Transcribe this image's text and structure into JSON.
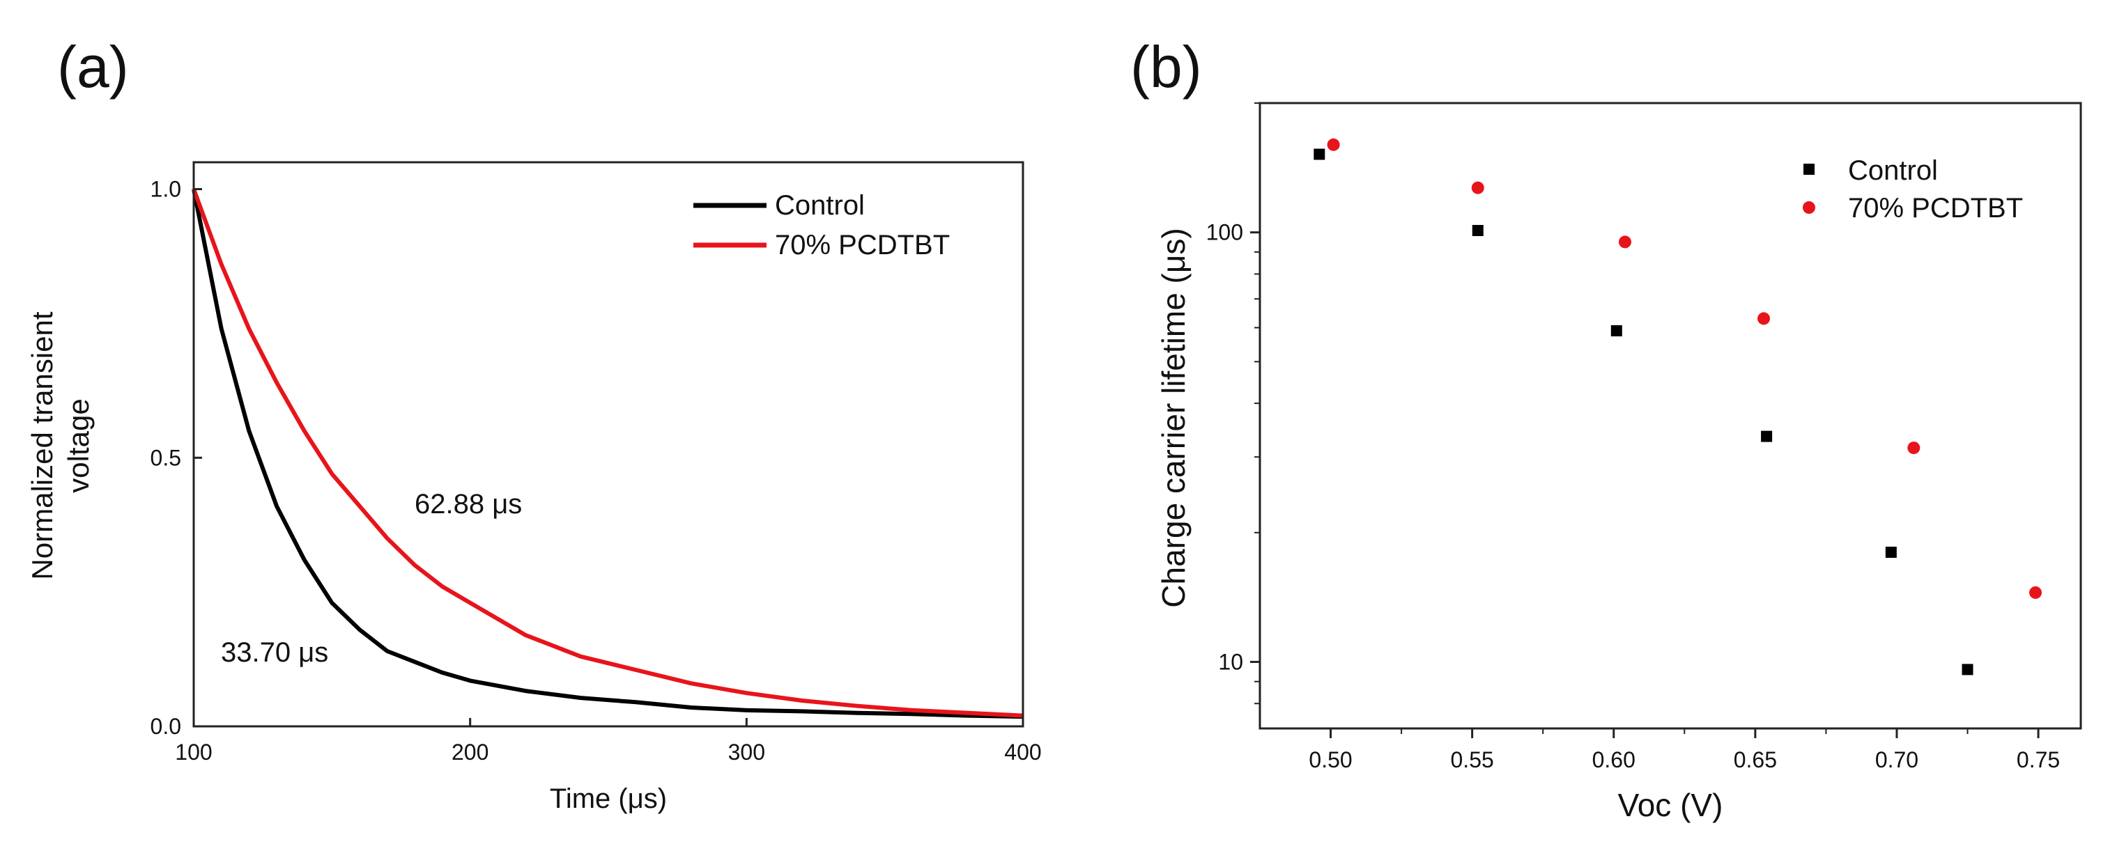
{
  "chart_data": [
    {
      "panel": "(a)",
      "type": "line",
      "title": "",
      "xlabel": "Time (μs)",
      "ylabel": "Normalized transient voltage",
      "ylabel_lines": [
        "Normalized transient",
        "voltage"
      ],
      "xlim": [
        100,
        400
      ],
      "ylim": [
        0,
        1.05
      ],
      "x_ticks": [
        100,
        200,
        300,
        400
      ],
      "x_tick_labels": [
        "100",
        "200",
        "300",
        "400"
      ],
      "y_ticks": [
        0,
        0.5,
        1.0
      ],
      "y_tick_labels": [
        "0.0",
        "0.5",
        "1.0"
      ],
      "legend_position": "top-right",
      "series": [
        {
          "name": "Control",
          "color": "#000000",
          "x": [
            100,
            110,
            120,
            130,
            140,
            150,
            160,
            170,
            180,
            190,
            200,
            220,
            240,
            260,
            280,
            300,
            320,
            340,
            360,
            380,
            400
          ],
          "values": [
            1.0,
            0.74,
            0.55,
            0.41,
            0.31,
            0.23,
            0.18,
            0.14,
            0.12,
            0.1,
            0.085,
            0.066,
            0.053,
            0.045,
            0.035,
            0.03,
            0.028,
            0.025,
            0.023,
            0.02,
            0.018
          ]
        },
        {
          "name": "70% PCDTBT",
          "color": "#e8141b",
          "x": [
            100,
            110,
            120,
            130,
            140,
            150,
            160,
            170,
            180,
            190,
            200,
            220,
            240,
            260,
            280,
            300,
            320,
            340,
            360,
            380,
            400
          ],
          "values": [
            1.0,
            0.86,
            0.74,
            0.64,
            0.55,
            0.47,
            0.41,
            0.35,
            0.3,
            0.26,
            0.23,
            0.17,
            0.13,
            0.105,
            0.08,
            0.062,
            0.048,
            0.038,
            0.03,
            0.025,
            0.02
          ]
        }
      ],
      "annotations": [
        {
          "text": "62.88 μs",
          "x": 183,
          "y": 0.4
        },
        {
          "text": "33.70 μs",
          "x": 110,
          "y": 0.135
        }
      ]
    },
    {
      "panel": "(b)",
      "type": "scatter",
      "title": "",
      "xlabel": "Voc (V)",
      "ylabel": "Charge carrier lifetime (μs)",
      "yscale": "log",
      "xlim": [
        0.475,
        0.765
      ],
      "ylim": [
        7,
        200
      ],
      "x_ticks": [
        0.5,
        0.55,
        0.6,
        0.65,
        0.7,
        0.75
      ],
      "x_tick_labels": [
        "0.50",
        "0.55",
        "0.60",
        "0.65",
        "0.70",
        "0.75"
      ],
      "y_ticks": [
        10,
        100
      ],
      "y_tick_labels": [
        "10",
        "100"
      ],
      "legend_position": "top-right",
      "series": [
        {
          "name": "Control",
          "color": "#000000",
          "marker": "square",
          "x": [
            0.496,
            0.552,
            0.601,
            0.654,
            0.698,
            0.725
          ],
          "values": [
            152,
            101,
            59,
            33.5,
            18,
            9.6
          ]
        },
        {
          "name": "70% PCDTBT",
          "color": "#e8141b",
          "marker": "circle",
          "x": [
            0.501,
            0.552,
            0.604,
            0.653,
            0.706,
            0.749
          ],
          "values": [
            160,
            127,
            95,
            63,
            31.5,
            14.5
          ]
        }
      ]
    }
  ]
}
